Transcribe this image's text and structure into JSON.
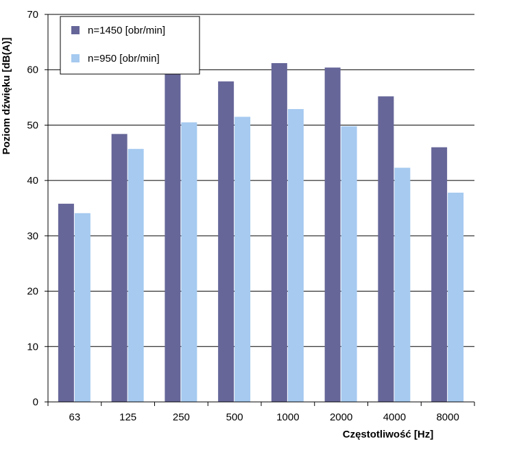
{
  "chart_data": {
    "type": "bar",
    "title": "",
    "xlabel": "Częstotliwość [Hz]",
    "ylabel": "Poziom dźwięku [dB(A)]",
    "ylim": [
      0,
      70
    ],
    "yticks": [
      0,
      10,
      20,
      30,
      40,
      50,
      60,
      70
    ],
    "grid": true,
    "legend_position": "top-left",
    "categories": [
      "63",
      "125",
      "250",
      "500",
      "1000",
      "2000",
      "4000",
      "8000"
    ],
    "series": [
      {
        "name": "n=1450 [obr/min]",
        "color": "#666699",
        "values": [
          35.8,
          48.4,
          59.5,
          57.9,
          61.2,
          60.4,
          55.2,
          46.0
        ]
      },
      {
        "name": "n=950 [obr/min]",
        "color": "#a6caf0",
        "values": [
          34.1,
          45.7,
          50.5,
          51.5,
          52.9,
          49.8,
          42.3,
          37.8
        ]
      }
    ]
  }
}
